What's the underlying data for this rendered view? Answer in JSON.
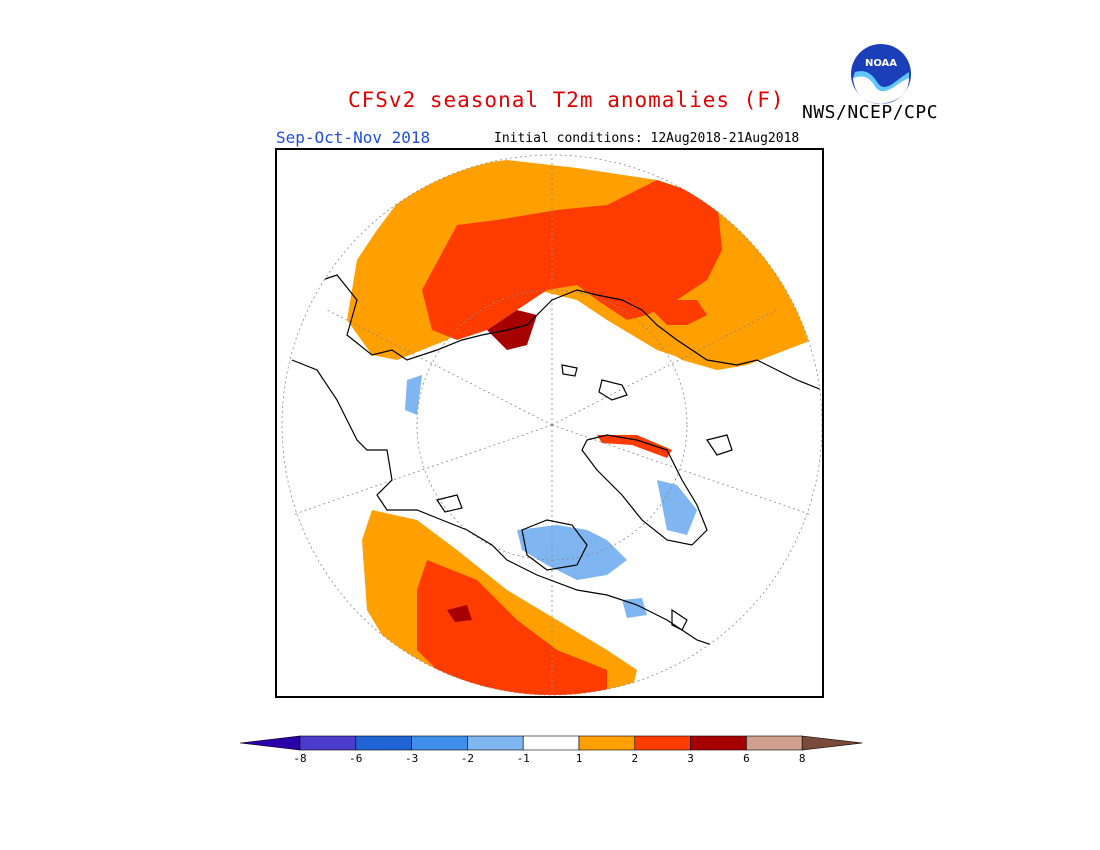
{
  "header": {
    "title": "CFSv2 seasonal T2m anomalies (F)",
    "org": "NWS/NCEP/CPC",
    "logo_text": "NOAA",
    "season": "Sep-Oct-Nov 2018",
    "initial_conditions": "Initial conditions: 12Aug2018-21Aug2018"
  },
  "legend": {
    "units": "F",
    "bins": [
      {
        "color": "#2a00a8"
      },
      {
        "color": "#4b3ccc"
      },
      {
        "color": "#1f63d4"
      },
      {
        "color": "#3f8fea"
      },
      {
        "color": "#7fb5f0"
      },
      {
        "color": "#ffffff"
      },
      {
        "color": "#ff9f00"
      },
      {
        "color": "#ff3c00"
      },
      {
        "color": "#a60000"
      },
      {
        "color": "#cfa08e"
      },
      {
        "color": "#7a4a3a"
      }
    ],
    "labels": [
      "-8",
      "-6",
      "-3",
      "-2",
      "-1",
      "1",
      "2",
      "3",
      "6",
      "8"
    ]
  },
  "map": {
    "projection": "north polar stereographic",
    "colors": {
      "warm1": "#ff9f00",
      "warm2": "#ff3c00",
      "warm3": "#a60000",
      "cool1": "#7fb5f0",
      "coastline": "#000000",
      "graticule": "#888888"
    }
  }
}
